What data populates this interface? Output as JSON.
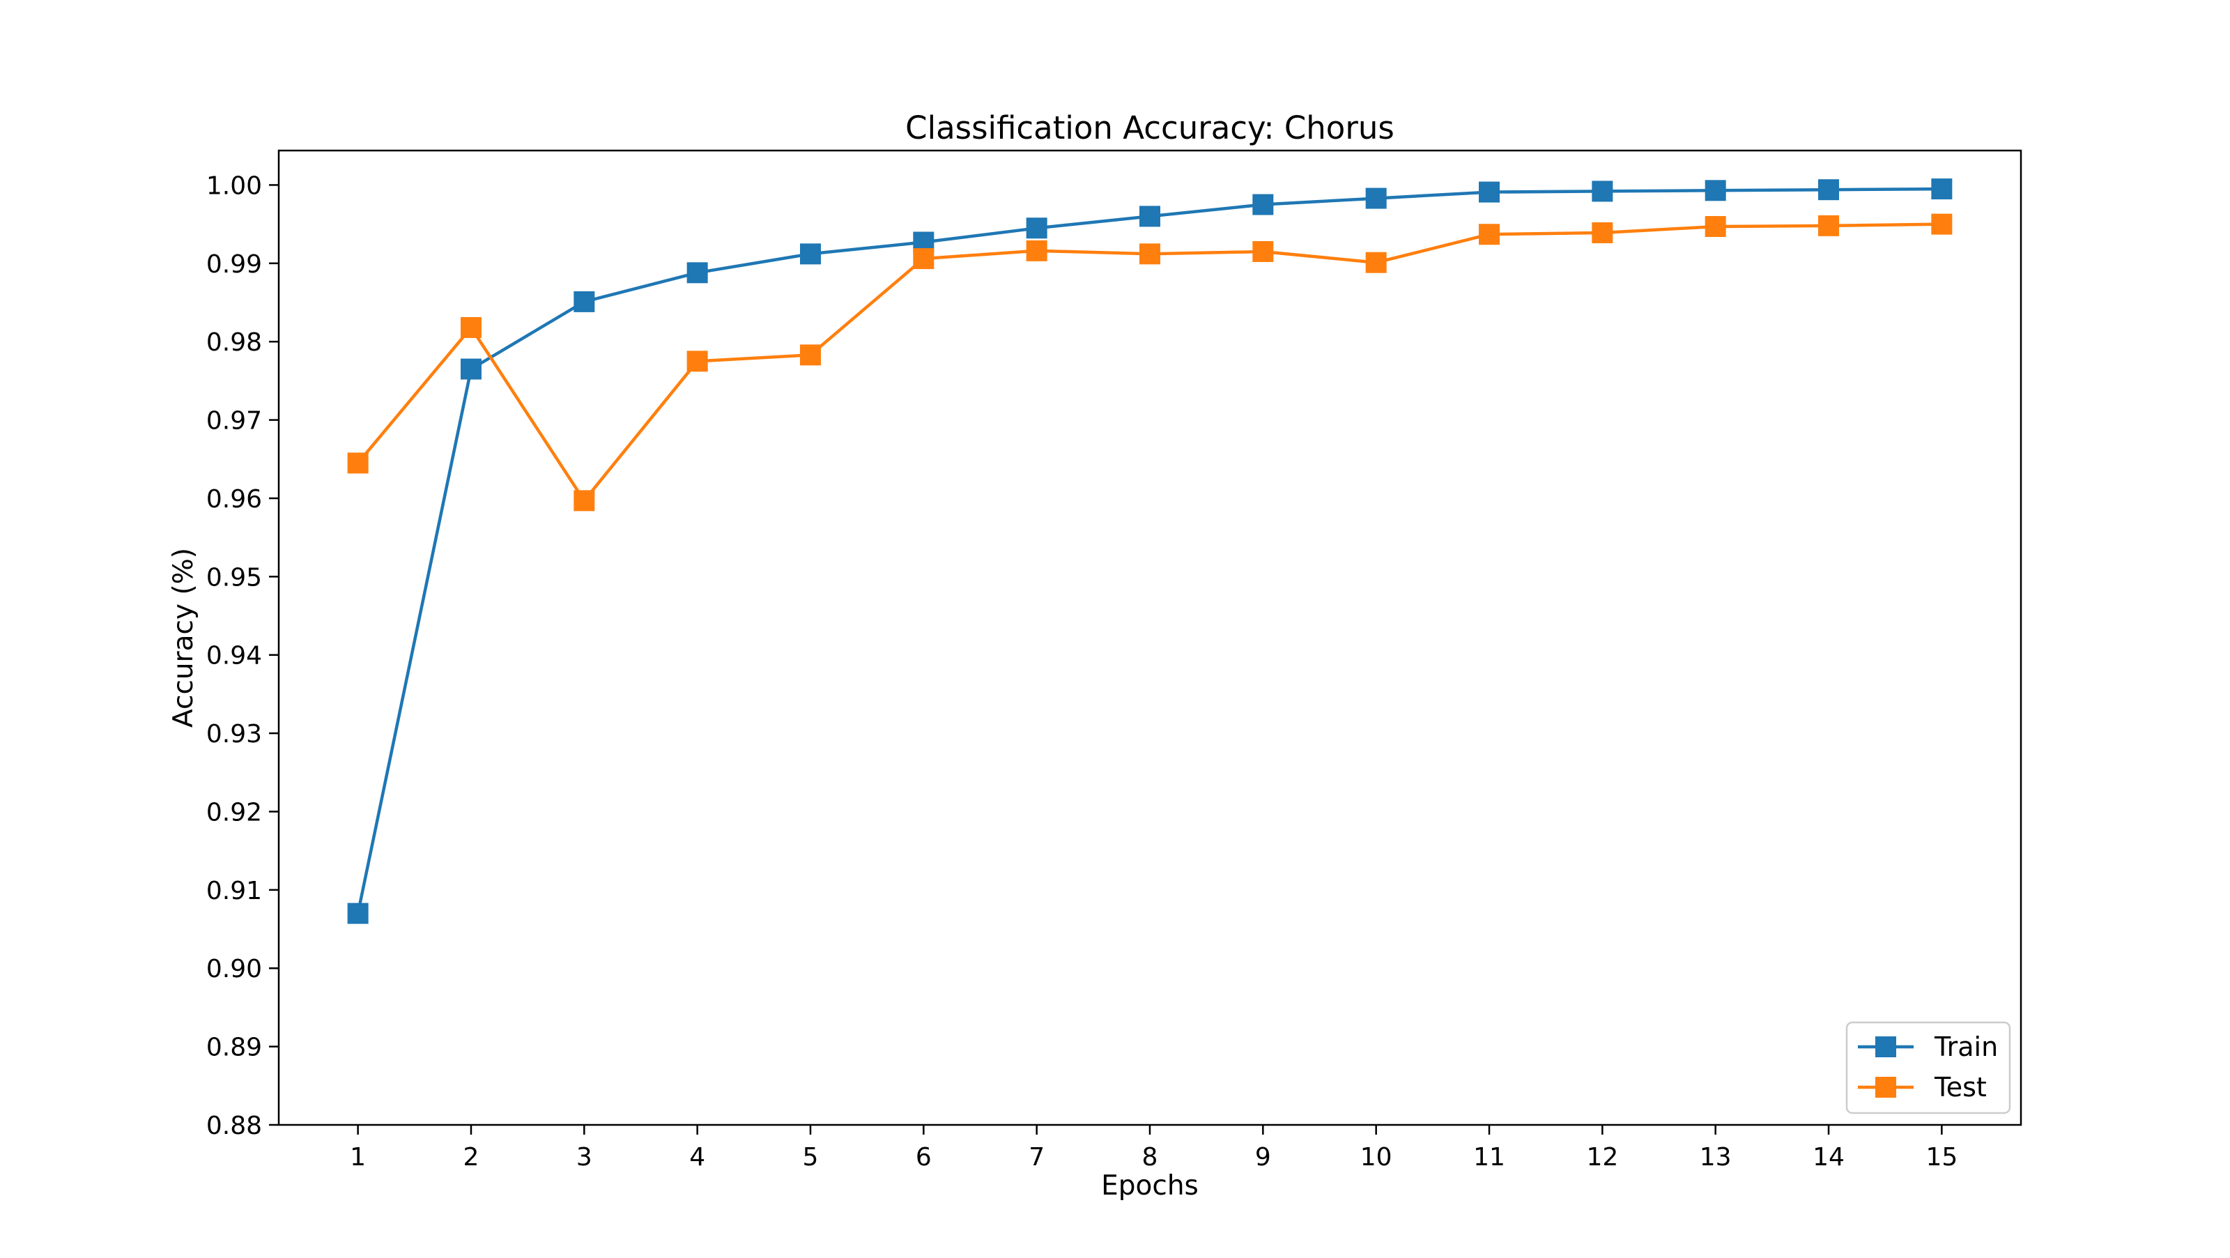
{
  "chart_data": {
    "type": "line",
    "title": "Classification Accuracy: Chorus",
    "xlabel": "Epochs",
    "ylabel": "Accuracy (%)",
    "x": [
      1,
      2,
      3,
      4,
      5,
      6,
      7,
      8,
      9,
      10,
      11,
      12,
      13,
      14,
      15
    ],
    "xlim": [
      0.3,
      15.7
    ],
    "ylim": [
      0.88,
      1.0044
    ],
    "yticks": [
      "0.88",
      "0.89",
      "0.90",
      "0.91",
      "0.92",
      "0.93",
      "0.94",
      "0.95",
      "0.96",
      "0.97",
      "0.98",
      "0.99",
      "1.00"
    ],
    "grid": false,
    "legend_position": "bottom-right",
    "series": [
      {
        "name": "Train",
        "color": "#1f77b4",
        "marker": "square",
        "values": [
          0.907,
          0.9765,
          0.9851,
          0.9888,
          0.9912,
          0.9927,
          0.9945,
          0.996,
          0.9975,
          0.9983,
          0.9991,
          0.9992,
          0.9993,
          0.9994,
          0.9995
        ]
      },
      {
        "name": "Test",
        "color": "#ff7f0e",
        "marker": "square",
        "values": [
          0.9645,
          0.9818,
          0.9597,
          0.9775,
          0.9783,
          0.9906,
          0.9916,
          0.9912,
          0.9915,
          0.9901,
          0.9937,
          0.9939,
          0.9947,
          0.9948,
          0.995
        ]
      }
    ]
  }
}
